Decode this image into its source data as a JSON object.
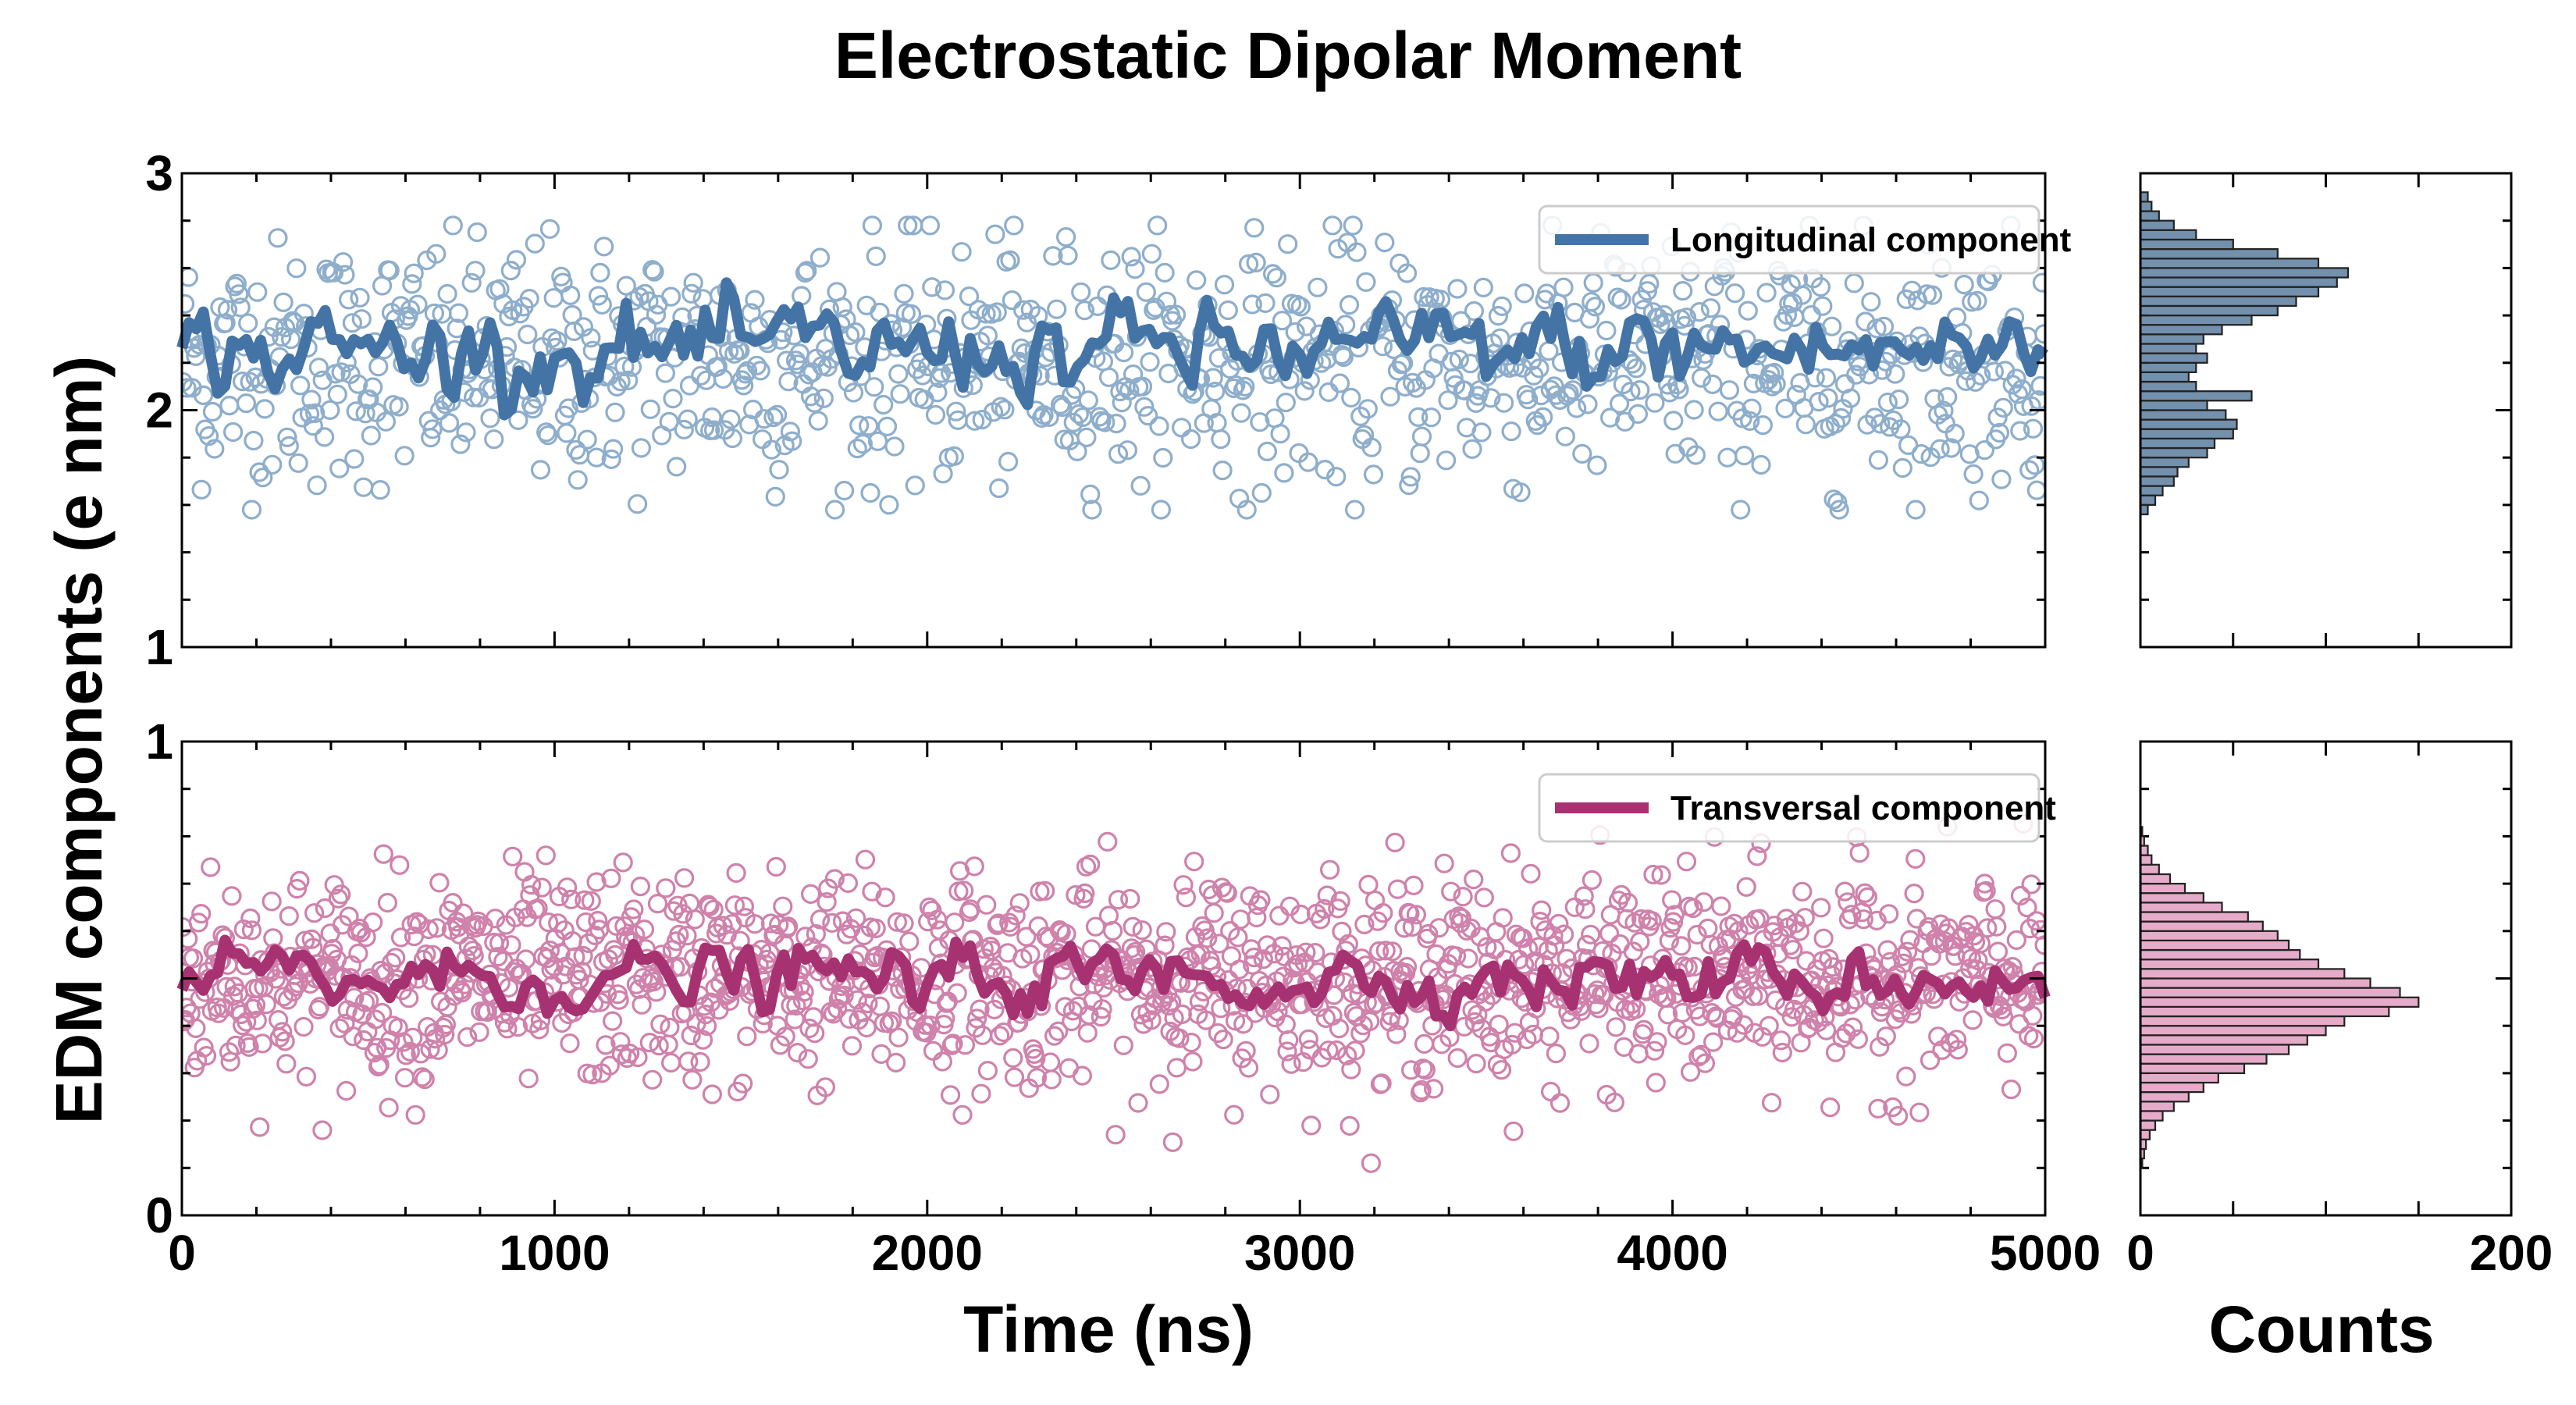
{
  "chart_data": {
    "type": "scatter",
    "title": "Electrostatic Dipolar Moment",
    "ylabel": "EDM components (e nm)",
    "xlabel": "Time (ns)",
    "hist_xlabel": "Counts",
    "xlim": [
      0,
      5000
    ],
    "xticks": [
      "0",
      "1000",
      "2000",
      "3000",
      "4000",
      "5000"
    ],
    "hist_xlim": [
      0,
      200
    ],
    "hist_xticks": [
      "0",
      "200"
    ],
    "panels": [
      {
        "name": "longitudinal",
        "legend": "Longitudinal component",
        "color": "#4474a5",
        "scatter_color": "#8eaecb",
        "hist_color": "#5a7d9e",
        "ylim": [
          1,
          3
        ],
        "yticks": [
          "1",
          "2",
          "3"
        ],
        "scatter_count": 1000,
        "scatter_mean": 2.2,
        "scatter_std": 0.26,
        "scatter_range": [
          1.58,
          2.78
        ],
        "running_mean_center": 2.25,
        "running_mean_range": [
          1.98,
          2.55
        ],
        "hist_bins_start": 1.56,
        "hist_bin_width": 0.04,
        "hist_counts": [
          4,
          8,
          12,
          18,
          20,
          26,
          36,
          40,
          50,
          52,
          46,
          36,
          60,
          30,
          26,
          30,
          36,
          30,
          34,
          44,
          60,
          74,
          84,
          96,
          106,
          112,
          96,
          74,
          50,
          30,
          18,
          10,
          6,
          4
        ]
      },
      {
        "name": "transversal",
        "legend": "Transversal component",
        "color": "#a73272",
        "scatter_color": "#cf82ab",
        "hist_color": "#e29cbf",
        "ylim": [
          0,
          1
        ],
        "yticks": [
          "0",
          "1"
        ],
        "scatter_count": 1400,
        "scatter_mean": 0.5,
        "scatter_std": 0.11,
        "scatter_range": [
          0.11,
          0.92
        ],
        "running_mean_center": 0.5,
        "running_mean_range": [
          0.4,
          0.6
        ],
        "hist_bins_start": 0.1,
        "hist_bin_width": 0.02,
        "hist_counts": [
          1,
          2,
          3,
          5,
          8,
          12,
          18,
          26,
          34,
          42,
          56,
          68,
          80,
          90,
          100,
          110,
          134,
          150,
          140,
          124,
          110,
          96,
          86,
          80,
          74,
          66,
          58,
          44,
          34,
          24,
          16,
          10,
          6,
          4,
          2,
          1
        ]
      }
    ]
  }
}
